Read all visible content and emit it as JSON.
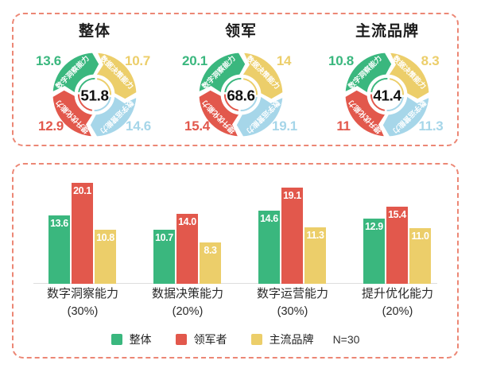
{
  "colors": {
    "green": "#3ab77e",
    "red": "#e2584c",
    "yellow": "#ecce6a",
    "blue": "#a6d6e9",
    "border": "#ec8775",
    "axis_line": "#dedede",
    "title_text": "#1c1c1c",
    "center_text": "#111111",
    "bar_value_text": "#ffffff"
  },
  "chart_data": [
    {
      "type": "pie",
      "variant": "arrow-donut",
      "title": "整体",
      "center_total": "51.8",
      "segments": [
        {
          "label": "数字洞察能力",
          "value": 13.6,
          "display": "13.6",
          "color": "green",
          "corner": "tl"
        },
        {
          "label": "数据决策能力",
          "value": 10.7,
          "display": "10.7",
          "color": "yellow",
          "corner": "tr"
        },
        {
          "label": "数字运营能力",
          "value": 14.6,
          "display": "14.6",
          "color": "blue",
          "corner": "br"
        },
        {
          "label": "提升优化能力",
          "value": 12.9,
          "display": "12.9",
          "color": "red",
          "corner": "bl"
        }
      ]
    },
    {
      "type": "pie",
      "variant": "arrow-donut",
      "title": "领军",
      "center_total": "68.6",
      "segments": [
        {
          "label": "数字洞察能力",
          "value": 20.1,
          "display": "20.1",
          "color": "green",
          "corner": "tl"
        },
        {
          "label": "数据决策能力",
          "value": 14,
          "display": "14",
          "color": "yellow",
          "corner": "tr"
        },
        {
          "label": "数字运营能力",
          "value": 19.1,
          "display": "19.1",
          "color": "blue",
          "corner": "br"
        },
        {
          "label": "提升优化能力",
          "value": 15.4,
          "display": "15.4",
          "color": "red",
          "corner": "bl"
        }
      ]
    },
    {
      "type": "pie",
      "variant": "arrow-donut",
      "title": "主流品牌",
      "center_total": "41.4",
      "segments": [
        {
          "label": "数字洞察能力",
          "value": 10.8,
          "display": "10.8",
          "color": "green",
          "corner": "tl"
        },
        {
          "label": "数据决策能力",
          "value": 8.3,
          "display": "8.3",
          "color": "yellow",
          "corner": "tr"
        },
        {
          "label": "数字运营能力",
          "value": 11.3,
          "display": "11.3",
          "color": "blue",
          "corner": "br"
        },
        {
          "label": "提升优化能力",
          "value": 11,
          "display": "11",
          "color": "red",
          "corner": "bl"
        }
      ]
    },
    {
      "type": "bar",
      "categories": [
        {
          "name": "数字洞察能力",
          "weight": "(30%)"
        },
        {
          "name": "数据决策能力",
          "weight": "(20%)"
        },
        {
          "name": "数字运营能力",
          "weight": "(30%)"
        },
        {
          "name": "提升优化能力",
          "weight": "(20%)"
        }
      ],
      "series": [
        {
          "name": "整体",
          "color": "green",
          "values": [
            13.6,
            10.7,
            14.6,
            12.9
          ],
          "labels": [
            "13.6",
            "10.7",
            "14.6",
            "12.9"
          ]
        },
        {
          "name": "领军者",
          "color": "red",
          "values": [
            20.1,
            14.0,
            19.1,
            15.4
          ],
          "labels": [
            "20.1",
            "14.0",
            "19.1",
            "15.4"
          ]
        },
        {
          "name": "主流品牌",
          "color": "yellow",
          "values": [
            10.8,
            8.3,
            11.3,
            11.0
          ],
          "labels": [
            "10.8",
            "8.3",
            "11.3",
            "11.0"
          ]
        }
      ],
      "annotation": "N=30",
      "ylim": [
        0,
        22
      ],
      "grid": false,
      "legend_position": "bottom"
    }
  ]
}
